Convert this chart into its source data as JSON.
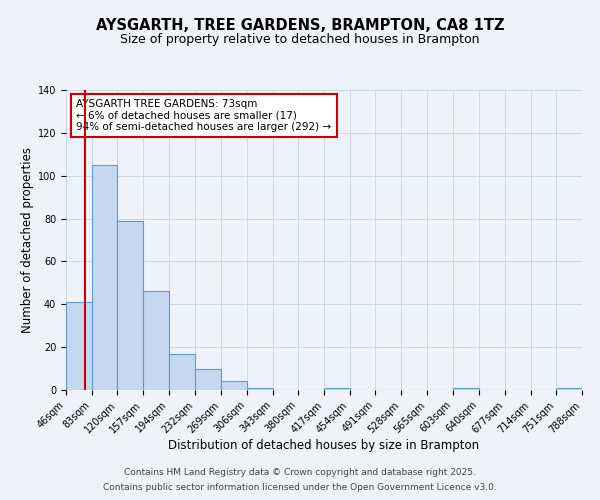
{
  "title": "AYSGARTH, TREE GARDENS, BRAMPTON, CA8 1TZ",
  "subtitle": "Size of property relative to detached houses in Brampton",
  "xlabel": "Distribution of detached houses by size in Brampton",
  "ylabel": "Number of detached properties",
  "bin_edges": [
    46,
    83,
    120,
    157,
    194,
    232,
    269,
    306,
    343,
    380,
    417,
    454,
    491,
    528,
    565,
    603,
    640,
    677,
    714,
    751,
    788
  ],
  "bar_heights": [
    41,
    105,
    79,
    46,
    17,
    10,
    4,
    1,
    0,
    0,
    1,
    0,
    0,
    0,
    0,
    1,
    0,
    0,
    0,
    1
  ],
  "bar_color": "#c5d8f0",
  "bar_edge_color": "#5b9bd5",
  "grid_color": "#d0d8e8",
  "background_color": "#eef2fa",
  "vline_x": 73,
  "vline_color": "#cc0000",
  "ylim": [
    0,
    140
  ],
  "yticks": [
    0,
    20,
    40,
    60,
    80,
    100,
    120,
    140
  ],
  "annotation_text": "AYSGARTH TREE GARDENS: 73sqm\n← 6% of detached houses are smaller (17)\n94% of semi-detached houses are larger (292) →",
  "annotation_box_color": "#ffffff",
  "annotation_box_edge": "#cc0000",
  "footer_line1": "Contains HM Land Registry data © Crown copyright and database right 2025.",
  "footer_line2": "Contains public sector information licensed under the Open Government Licence v3.0.",
  "title_fontsize": 10.5,
  "subtitle_fontsize": 9,
  "xlabel_fontsize": 8.5,
  "ylabel_fontsize": 8.5,
  "tick_fontsize": 7,
  "annotation_fontsize": 7.5,
  "footer_fontsize": 6.5
}
